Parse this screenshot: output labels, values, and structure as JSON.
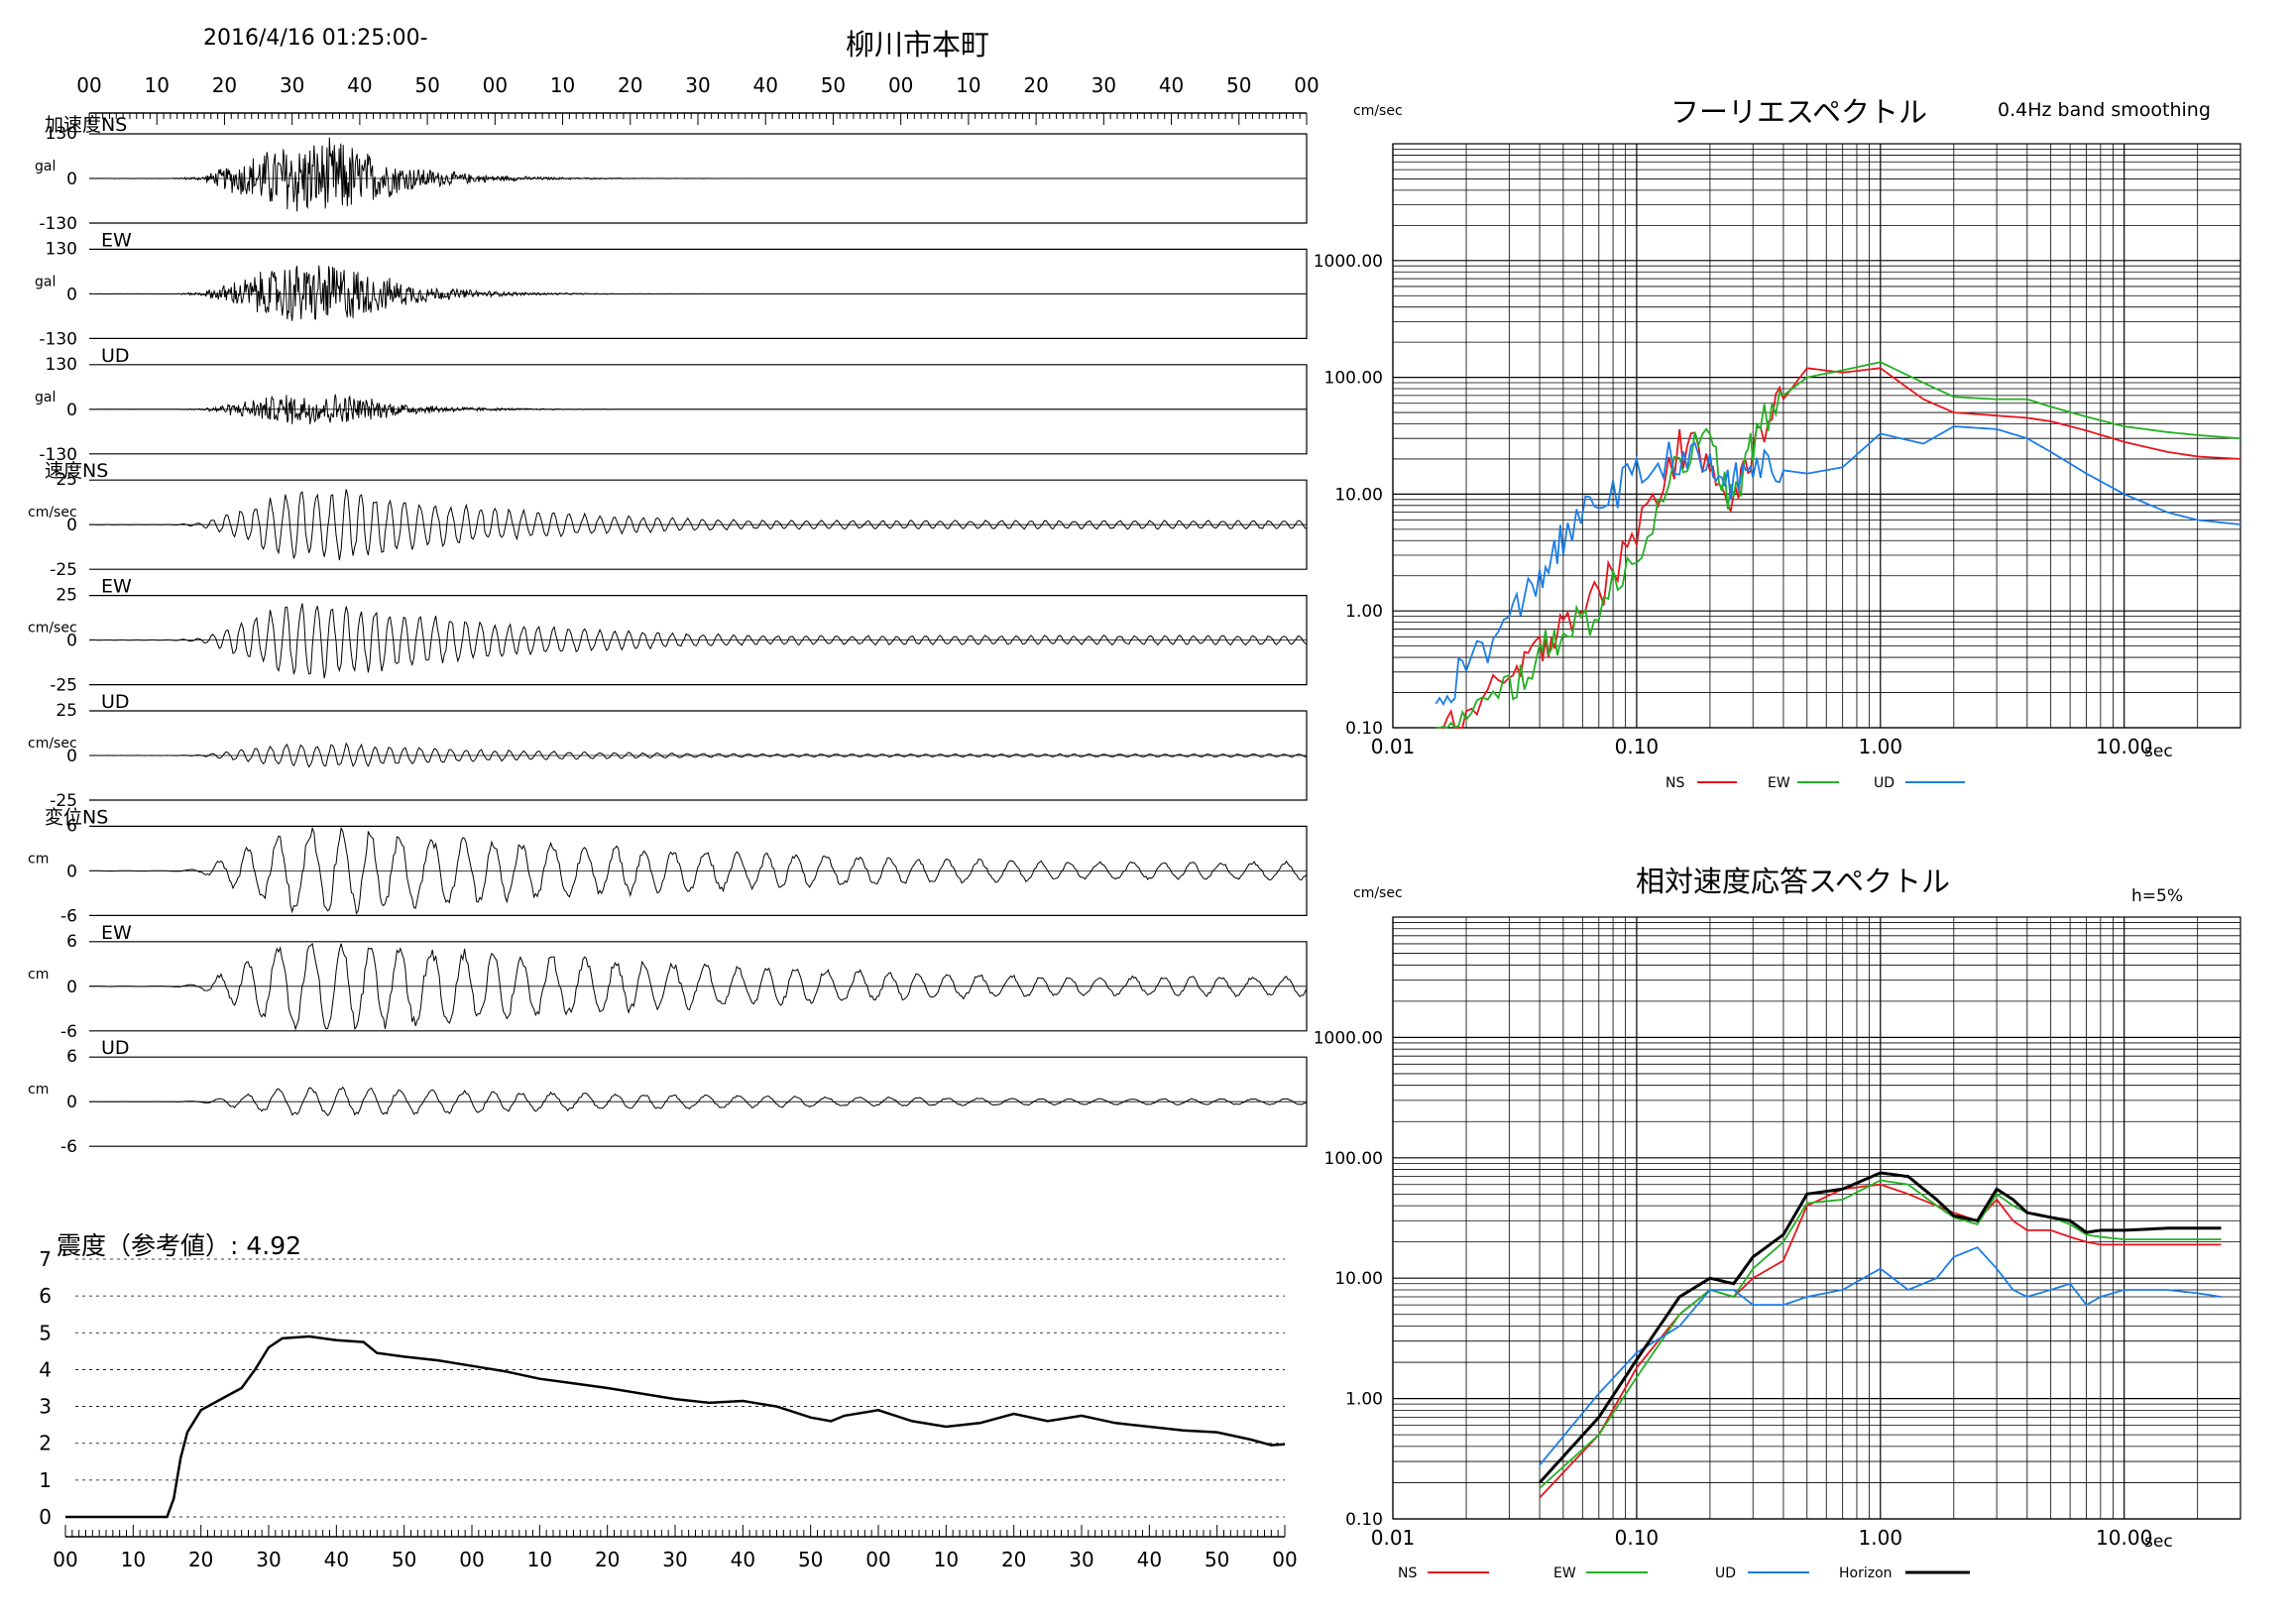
{
  "header": {
    "datetime": "2016/4/16 01:25:00-",
    "station": "柳川市本町",
    "time_ticks": [
      "00",
      "10",
      "20",
      "30",
      "40",
      "50",
      "00",
      "10",
      "20",
      "30",
      "40",
      "50",
      "00",
      "10",
      "20",
      "30",
      "40",
      "50",
      "00"
    ]
  },
  "waveforms": {
    "acc": {
      "group": "加速度",
      "unit": "gal",
      "max": "130",
      "zero": "0",
      "min": "-130",
      "channels": [
        {
          "name": "NS",
          "amp": 1.0
        },
        {
          "name": "EW",
          "amp": 0.82
        },
        {
          "name": "UD",
          "amp": 0.42
        }
      ]
    },
    "vel": {
      "group": "速度",
      "unit": "cm/sec",
      "max": "25",
      "zero": "0",
      "min": "-25",
      "channels": [
        {
          "name": "NS",
          "amp": 0.72
        },
        {
          "name": "EW",
          "amp": 0.78
        },
        {
          "name": "UD",
          "amp": 0.25
        }
      ]
    },
    "disp": {
      "group": "変位",
      "unit": "cm",
      "max": "6",
      "zero": "0",
      "min": "-6",
      "channels": [
        {
          "name": "NS",
          "amp": 0.92
        },
        {
          "name": "EW",
          "amp": 1.0
        },
        {
          "name": "UD",
          "amp": 0.3
        }
      ]
    }
  },
  "intensity": {
    "label": "震度（参考値）: 4.92",
    "y_ticks": [
      "0",
      "1",
      "2",
      "3",
      "4",
      "5",
      "6",
      "7"
    ],
    "x_ticks": [
      "00",
      "10",
      "20",
      "30",
      "40",
      "50",
      "00",
      "10",
      "20",
      "30",
      "40",
      "50",
      "00",
      "10",
      "20",
      "30",
      "40",
      "50",
      "00"
    ]
  },
  "fourier": {
    "title": "フーリエスペクトル",
    "note": "0.4Hz band smoothing",
    "unit": "cm/sec",
    "y_labels": [
      "1000.00",
      "100.00",
      "10.00",
      "1.00",
      "0.10"
    ],
    "x_labels": [
      "0.01",
      "0.10",
      "1.00",
      "10.00"
    ],
    "x_unit": "sec",
    "legend": [
      "NS",
      "EW",
      "UD"
    ]
  },
  "response": {
    "title": "相対速度応答スペクトル",
    "note": "h=5%",
    "unit": "cm/sec",
    "y_labels": [
      "1000.00",
      "100.00",
      "10.00",
      "1.00",
      "0.10"
    ],
    "x_labels": [
      "0.01",
      "0.10",
      "1.00",
      "10.00"
    ],
    "x_unit": "sec",
    "legend": [
      "NS",
      "EW",
      "UD",
      "Horizon"
    ]
  },
  "colors": {
    "NS": "#e8141b",
    "EW": "#22b022",
    "UD": "#1a7de8",
    "Horizon": "#000000"
  },
  "chart_data": [
    {
      "type": "line",
      "title": "柳川市本町",
      "subtitle": "2016/4/16 01:25:00-",
      "x": [
        0,
        10,
        15,
        20,
        30,
        40,
        50,
        60,
        80,
        100,
        120,
        180
      ],
      "series": [
        {
          "name": "加速度NS",
          "values": [
            0,
            0,
            20,
            80,
            130,
            90,
            40,
            20,
            10,
            5,
            3,
            1
          ]
        },
        {
          "name": "加速度EW",
          "values": [
            0,
            0,
            15,
            70,
            105,
            80,
            35,
            18,
            9,
            5,
            3,
            1
          ]
        },
        {
          "name": "加速度UD",
          "values": [
            0,
            0,
            20,
            45,
            55,
            35,
            18,
            10,
            5,
            3,
            2,
            1
          ]
        }
      ],
      "ylim": [
        -130,
        130
      ]
    },
    {
      "type": "line",
      "x": [
        0,
        10,
        15,
        20,
        30,
        40,
        50,
        60,
        80,
        100,
        120,
        180
      ],
      "series": [
        {
          "name": "速度NS",
          "values": [
            0,
            0,
            2,
            8,
            18,
            14,
            9,
            6,
            4,
            3,
            2,
            1
          ]
        },
        {
          "name": "速度EW",
          "values": [
            0,
            0,
            2,
            8,
            20,
            16,
            9,
            6,
            4,
            3,
            2,
            1
          ]
        },
        {
          "name": "速度UD",
          "values": [
            0,
            0,
            1,
            3,
            6,
            5,
            3,
            2,
            2,
            1,
            1,
            1
          ]
        }
      ],
      "ylim": [
        -25,
        25
      ]
    },
    {
      "type": "line",
      "x": [
        0,
        10,
        15,
        20,
        30,
        40,
        50,
        60,
        80,
        100,
        120,
        180
      ],
      "series": [
        {
          "name": "変位NS",
          "values": [
            0,
            0,
            0.5,
            1.5,
            5.5,
            5,
            4,
            3,
            2,
            1.5,
            1.2,
            0.8
          ]
        },
        {
          "name": "変位EW",
          "values": [
            0,
            0,
            0.5,
            2,
            6,
            5.5,
            4.5,
            3.5,
            2.5,
            2,
            1.8,
            1.2
          ]
        },
        {
          "name": "変位UD",
          "values": [
            0,
            0,
            0.2,
            0.6,
            1.5,
            1.3,
            1,
            0.8,
            0.6,
            0.5,
            0.4,
            0.3
          ]
        }
      ],
      "ylim": [
        -6,
        6
      ]
    },
    {
      "type": "line",
      "title": "震度（参考値）: 4.92",
      "x": [
        0,
        15,
        16,
        17,
        18,
        20,
        22,
        24,
        26,
        28,
        30,
        32,
        36,
        40,
        44,
        46,
        50,
        55,
        60,
        65,
        70,
        74,
        80,
        90,
        95,
        100,
        105,
        110,
        113,
        115,
        120,
        125,
        130,
        135,
        140,
        145,
        150,
        155,
        160,
        165,
        170,
        175,
        178,
        180
      ],
      "series": [
        {
          "name": "震度",
          "values": [
            0,
            0,
            0.5,
            1.6,
            2.3,
            2.9,
            3.1,
            3.3,
            3.5,
            4.0,
            4.6,
            4.85,
            4.9,
            4.8,
            4.75,
            4.45,
            4.35,
            4.25,
            4.1,
            3.95,
            3.75,
            3.65,
            3.5,
            3.2,
            3.1,
            3.15,
            3.0,
            2.7,
            2.6,
            2.75,
            2.9,
            2.6,
            2.45,
            2.55,
            2.8,
            2.6,
            2.75,
            2.55,
            2.45,
            2.35,
            2.3,
            2.1,
            1.95,
            1.97
          ]
        }
      ],
      "ylim": [
        0,
        7
      ]
    },
    {
      "type": "line",
      "title": "フーリエスペクトル",
      "subtitle": "0.4Hz band smoothing",
      "ylabel": "cm/sec",
      "xlabel": "sec",
      "x_scale": "log",
      "y_scale": "log",
      "xlim": [
        0.01,
        30
      ],
      "ylim": [
        0.1,
        10000
      ],
      "x": [
        0.015,
        0.02,
        0.03,
        0.04,
        0.05,
        0.07,
        0.1,
        0.15,
        0.2,
        0.25,
        0.3,
        0.4,
        0.5,
        0.7,
        1.0,
        1.5,
        2,
        3,
        4,
        5,
        7,
        10,
        15,
        20,
        30
      ],
      "series": [
        {
          "name": "NS",
          "values": [
            0.08,
            0.12,
            0.25,
            0.45,
            0.9,
            1.3,
            5,
            24,
            22,
            8,
            25,
            65,
            120,
            110,
            120,
            65,
            50,
            47,
            45,
            42,
            35,
            28,
            23,
            21,
            20
          ]
        },
        {
          "name": "EW",
          "values": [
            0.08,
            0.11,
            0.22,
            0.4,
            0.7,
            1.0,
            3,
            22,
            26,
            8,
            28,
            70,
            100,
            115,
            135,
            90,
            68,
            65,
            65,
            56,
            46,
            38,
            34,
            32,
            30
          ]
        },
        {
          "name": "UD",
          "values": [
            0.15,
            0.35,
            0.8,
            2,
            4,
            9,
            14,
            22,
            16,
            12,
            18,
            16,
            15,
            17,
            33,
            27,
            38,
            36,
            30,
            23,
            15,
            10,
            7,
            6,
            5.5
          ]
        }
      ]
    },
    {
      "type": "line",
      "title": "相対速度応答スペクトル",
      "subtitle": "h=5%",
      "ylabel": "cm/sec",
      "xlabel": "sec",
      "x_scale": "log",
      "y_scale": "log",
      "xlim": [
        0.01,
        30
      ],
      "ylim": [
        0.1,
        10000
      ],
      "x": [
        0.04,
        0.07,
        0.1,
        0.15,
        0.2,
        0.25,
        0.3,
        0.4,
        0.5,
        0.7,
        1.0,
        1.3,
        1.7,
        2,
        2.5,
        3,
        3.5,
        4,
        5,
        6,
        7,
        8,
        10,
        15,
        20,
        25
      ],
      "series": [
        {
          "name": "NS",
          "values": [
            0.15,
            0.5,
            1.8,
            5,
            8,
            7,
            10,
            14,
            40,
            55,
            60,
            50,
            40,
            35,
            30,
            45,
            30,
            25,
            25,
            22,
            20,
            19,
            19,
            19,
            19,
            19
          ]
        },
        {
          "name": "EW",
          "values": [
            0.18,
            0.5,
            1.5,
            5,
            8,
            7,
            12,
            20,
            42,
            45,
            65,
            60,
            40,
            32,
            28,
            50,
            40,
            35,
            32,
            28,
            23,
            22,
            21,
            21,
            21,
            21
          ]
        },
        {
          "name": "UD",
          "values": [
            0.28,
            1.1,
            2.4,
            4,
            8,
            8,
            6,
            6,
            7,
            8,
            12,
            8,
            10,
            15,
            18,
            12,
            8,
            7,
            8,
            9,
            6,
            7,
            8,
            8,
            7.5,
            7
          ]
        },
        {
          "name": "Horizon",
          "values": [
            0.2,
            0.7,
            2.1,
            7,
            10,
            9,
            15,
            23,
            50,
            55,
            75,
            70,
            45,
            33,
            30,
            55,
            45,
            35,
            32,
            30,
            24,
            25,
            25,
            26,
            26,
            26
          ]
        }
      ]
    }
  ]
}
